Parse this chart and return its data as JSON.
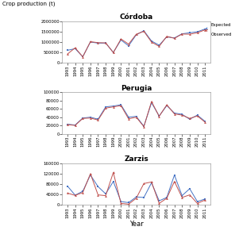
{
  "years": [
    1993,
    1994,
    1995,
    1996,
    1997,
    1998,
    1999,
    2000,
    2001,
    2002,
    2003,
    2004,
    2005,
    2006,
    2007,
    2008,
    2009,
    2010,
    2011
  ],
  "cordoba_expected": [
    600000,
    680000,
    290000,
    1000000,
    950000,
    950000,
    500000,
    1100000,
    820000,
    1350000,
    1550000,
    1050000,
    850000,
    1250000,
    1200000,
    1400000,
    1450000,
    1500000,
    1630000
  ],
  "cordoba_observed": [
    420000,
    720000,
    285000,
    1020000,
    970000,
    960000,
    490000,
    1150000,
    900000,
    1380000,
    1520000,
    1000000,
    790000,
    1280000,
    1180000,
    1390000,
    1380000,
    1450000,
    1590000
  ],
  "perugia_expected": [
    23000,
    21000,
    38000,
    40000,
    35000,
    65000,
    67000,
    70000,
    40000,
    42000,
    18000,
    75000,
    43000,
    68000,
    50000,
    47000,
    35000,
    45000,
    30000
  ],
  "perugia_observed": [
    22000,
    20000,
    37000,
    38000,
    33000,
    62000,
    65000,
    68000,
    36000,
    40000,
    17000,
    78000,
    42000,
    70000,
    48000,
    45000,
    37000,
    43000,
    28000
  ],
  "zarzis_expected": [
    72000,
    37000,
    52000,
    115000,
    70000,
    42000,
    90000,
    12000,
    8000,
    30000,
    28000,
    85000,
    15000,
    28000,
    115000,
    35000,
    62000,
    12000,
    22000
  ],
  "zarzis_observed": [
    45000,
    36000,
    47000,
    120000,
    38000,
    35000,
    125000,
    5000,
    2000,
    25000,
    82000,
    88000,
    5000,
    25000,
    90000,
    28000,
    38000,
    5000,
    18000
  ],
  "titles": [
    "Córdoba",
    "Perugia",
    "Zarzis"
  ],
  "ylabel": "Crop production (t)",
  "xlabel": "Year",
  "cordoba_ylim": [
    0,
    2000000
  ],
  "cordoba_yticks": [
    0,
    500000,
    1000000,
    1500000,
    2000000
  ],
  "perugia_ylim": [
    0,
    100000
  ],
  "perugia_yticks": [
    0,
    20000,
    40000,
    60000,
    80000,
    100000
  ],
  "zarzis_ylim": [
    0,
    160000
  ],
  "zarzis_yticks": [
    0,
    40000,
    80000,
    120000,
    160000
  ],
  "color_expected": "#4472c4",
  "color_observed": "#c0504d",
  "marker_expected": "s",
  "marker_observed": "^"
}
